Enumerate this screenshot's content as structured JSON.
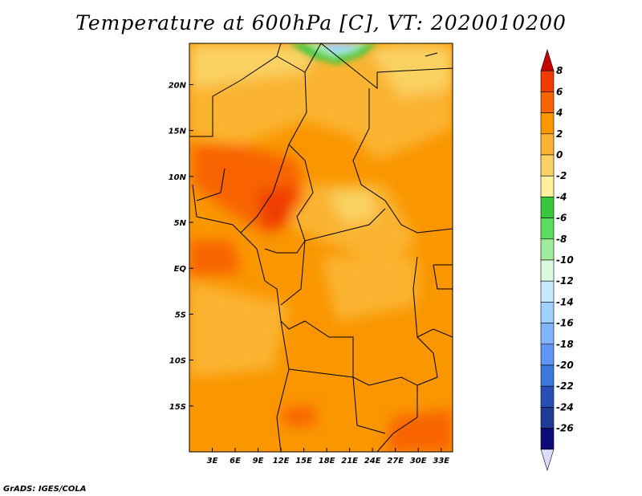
{
  "title": "Temperature at 600hPa [C], VT: 2020010200",
  "credit": "GrADS: IGES/COLA",
  "map": {
    "lon_range": [
      0,
      34.5
    ],
    "lat_range": [
      -20,
      24.5
    ],
    "lon_ticks": [
      "3E",
      "6E",
      "9E",
      "12E",
      "15E",
      "18E",
      "21E",
      "24E",
      "27E",
      "30E",
      "33E"
    ],
    "lat_ticks": [
      "20N",
      "15N",
      "10N",
      "5N",
      "EQ",
      "5S",
      "10S",
      "15S"
    ]
  },
  "colorbar": {
    "labels": [
      "8",
      "6",
      "4",
      "2",
      "0",
      "-2",
      "-4",
      "-6",
      "-8",
      "-10",
      "-12",
      "-14",
      "-16",
      "-18",
      "-20",
      "-22",
      "-24",
      "-26"
    ],
    "colors": [
      "#c80000",
      "#f03c00",
      "#f86400",
      "#fa9600",
      "#fab432",
      "#fad264",
      "#fff0a0",
      "#39c73b",
      "#5ddd5d",
      "#a0eb9c",
      "#dcfae0",
      "#c8eaff",
      "#a0d2ff",
      "#82b4fa",
      "#5f96f5",
      "#3c78dc",
      "#2850b4",
      "#1e3c96",
      "#0c0a78",
      "#dcdcff"
    ]
  }
}
